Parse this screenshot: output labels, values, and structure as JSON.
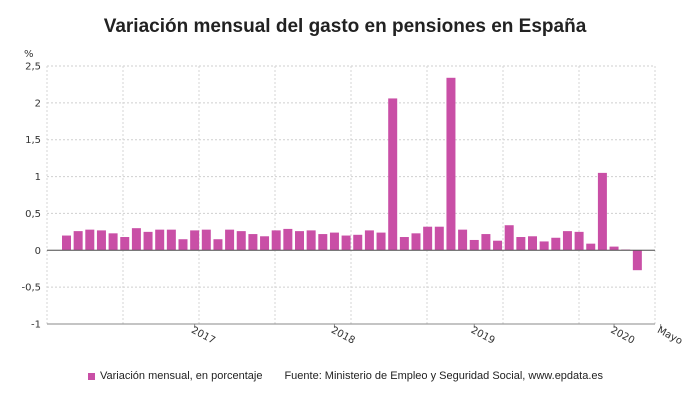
{
  "title": "Variación mensual del gasto en pensiones en España",
  "chart_data": {
    "type": "bar",
    "title": "Variación mensual del gasto en pensiones en España",
    "ylabel": "%",
    "ylim": [
      -1,
      2.5
    ],
    "yticks": [
      -1,
      -0.5,
      0,
      0.5,
      1,
      1.5,
      2,
      2.5
    ],
    "ytick_labels": [
      "-1",
      "-0,5",
      "0",
      "0,5",
      "1",
      "1,5",
      "2",
      "2,5"
    ],
    "grid": true,
    "x_labels": [
      {
        "label": "2017",
        "index": 11
      },
      {
        "label": "2018",
        "index": 23
      },
      {
        "label": "2019",
        "index": 35
      },
      {
        "label": "2020",
        "index": 47
      },
      {
        "label": "Mayo",
        "index": 51
      }
    ],
    "bar_color": "#c94fa6",
    "series": [
      {
        "name": "Variación mensual, en porcentaje",
        "values": [
          0.2,
          0.26,
          0.28,
          0.27,
          0.23,
          0.18,
          0.3,
          0.25,
          0.28,
          0.28,
          0.15,
          0.27,
          0.28,
          0.15,
          0.28,
          0.26,
          0.22,
          0.19,
          0.27,
          0.29,
          0.26,
          0.27,
          0.22,
          0.24,
          0.2,
          0.21,
          0.27,
          0.24,
          2.06,
          0.18,
          0.23,
          0.32,
          0.32,
          2.34,
          0.28,
          0.14,
          0.22,
          0.13,
          0.34,
          0.18,
          0.19,
          0.12,
          0.17,
          0.26,
          0.25,
          0.09,
          1.05,
          0.05,
          0.01,
          -0.27
        ]
      }
    ],
    "legend": {
      "placement": "bottom",
      "label": "Variación mensual, en porcentaje",
      "source": "Fuente: Ministerio de Empleo y Seguridad Social, www.epdata.es"
    }
  }
}
